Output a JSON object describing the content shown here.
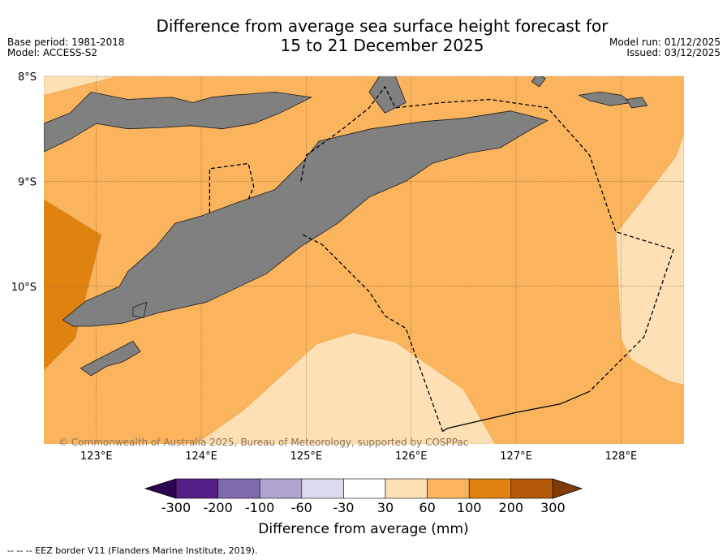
{
  "chart_data": {
    "type": "heatmap",
    "title_line1": "Difference from average sea surface height forecast for",
    "title_line2": "15 to 21 December 2025",
    "base_period": "Base period: 1981-2018",
    "model": "Model: ACCESS-S2",
    "model_run": "Model run: 01/12/2025",
    "issued": "Issued: 03/12/2025",
    "lon_range": [
      122.5,
      128.6
    ],
    "lat_range": [
      -11.5,
      -8.0
    ],
    "lon_ticks": [
      {
        "value": 123,
        "label": "123°E"
      },
      {
        "value": 124,
        "label": "124°E"
      },
      {
        "value": 125,
        "label": "125°E"
      },
      {
        "value": 126,
        "label": "126°E"
      },
      {
        "value": 127,
        "label": "127°E"
      },
      {
        "value": 128,
        "label": "128°E"
      }
    ],
    "lat_ticks": [
      {
        "value": -8,
        "label": "8°S"
      },
      {
        "value": -9,
        "label": "9°S"
      },
      {
        "value": -10,
        "label": "10°S"
      }
    ],
    "copyright": "© Commonwealth of Australia 2025, Bureau of Meteorology, supported by COSPPac",
    "background_bin": "60 to 100",
    "regions": [
      {
        "name": "100 to 200 mm",
        "color": "#e0820f",
        "lonlat": [
          [
            122.5,
            -9.17
          ],
          [
            123.05,
            -9.51
          ],
          [
            122.8,
            -10.5
          ],
          [
            122.5,
            -10.8
          ]
        ]
      },
      {
        "name": "30 to 60 mm (south)",
        "color": "#fde0b4",
        "lonlat": [
          [
            123.95,
            -11.5
          ],
          [
            124.4,
            -11.18
          ],
          [
            125.1,
            -10.55
          ],
          [
            125.45,
            -10.44
          ],
          [
            125.85,
            -10.53
          ],
          [
            126.5,
            -10.98
          ],
          [
            126.8,
            -11.5
          ]
        ]
      },
      {
        "name": "30 to 60 mm (east)",
        "color": "#fde0b4",
        "lonlat": [
          [
            128.6,
            -8.55
          ],
          [
            128.52,
            -8.77
          ],
          [
            127.95,
            -9.5
          ],
          [
            128.0,
            -10.5
          ],
          [
            128.1,
            -10.7
          ],
          [
            128.45,
            -10.9
          ],
          [
            128.6,
            -10.94
          ]
        ]
      },
      {
        "name": "30 to 60 mm (north-west corner)",
        "color": "#fde0b4",
        "lonlat": [
          [
            122.5,
            -8.0
          ],
          [
            123.2,
            -8.0
          ],
          [
            122.5,
            -8.18
          ]
        ]
      }
    ],
    "land": [
      {
        "name": "Timor",
        "lonlat": [
          [
            122.68,
            -10.32
          ],
          [
            122.9,
            -10.14
          ],
          [
            123.22,
            -10.0
          ],
          [
            123.3,
            -9.86
          ],
          [
            123.57,
            -9.62
          ],
          [
            123.75,
            -9.4
          ],
          [
            124.0,
            -9.33
          ],
          [
            124.35,
            -9.2
          ],
          [
            124.7,
            -9.08
          ],
          [
            124.98,
            -8.8
          ],
          [
            125.12,
            -8.62
          ],
          [
            125.62,
            -8.5
          ],
          [
            126.12,
            -8.43
          ],
          [
            126.5,
            -8.4
          ],
          [
            126.95,
            -8.33
          ],
          [
            127.3,
            -8.42
          ],
          [
            127.1,
            -8.53
          ],
          [
            126.85,
            -8.68
          ],
          [
            126.55,
            -8.73
          ],
          [
            126.2,
            -8.83
          ],
          [
            125.95,
            -9.0
          ],
          [
            125.6,
            -9.15
          ],
          [
            125.3,
            -9.4
          ],
          [
            124.95,
            -9.62
          ],
          [
            124.62,
            -9.88
          ],
          [
            124.05,
            -10.15
          ],
          [
            123.6,
            -10.25
          ],
          [
            123.25,
            -10.35
          ],
          [
            122.95,
            -10.38
          ],
          [
            122.78,
            -10.38
          ]
        ]
      },
      {
        "name": "Alor and Solor islands",
        "lonlat": [
          [
            122.5,
            -8.45
          ],
          [
            122.75,
            -8.35
          ],
          [
            122.95,
            -8.15
          ],
          [
            123.3,
            -8.22
          ],
          [
            123.72,
            -8.2
          ],
          [
            123.92,
            -8.25
          ],
          [
            124.1,
            -8.2
          ],
          [
            124.28,
            -8.18
          ],
          [
            124.45,
            -8.17
          ],
          [
            124.7,
            -8.15
          ],
          [
            125.05,
            -8.2
          ],
          [
            124.75,
            -8.35
          ],
          [
            124.5,
            -8.45
          ],
          [
            124.2,
            -8.5
          ],
          [
            123.9,
            -8.47
          ],
          [
            123.6,
            -8.49
          ],
          [
            123.3,
            -8.5
          ],
          [
            123.0,
            -8.45
          ],
          [
            122.75,
            -8.6
          ],
          [
            122.5,
            -8.72
          ]
        ]
      },
      {
        "name": "Wetar",
        "lonlat": [
          [
            125.75,
            -7.92
          ],
          [
            125.85,
            -8.0
          ],
          [
            125.95,
            -8.25
          ],
          [
            125.75,
            -8.35
          ],
          [
            125.6,
            -8.15
          ]
        ]
      },
      {
        "name": "Kisar",
        "lonlat": [
          [
            127.2,
            -7.98
          ],
          [
            127.28,
            -8.02
          ],
          [
            127.22,
            -8.1
          ],
          [
            127.15,
            -8.05
          ]
        ]
      },
      {
        "name": "Leti",
        "lonlat": [
          [
            127.6,
            -8.18
          ],
          [
            127.8,
            -8.15
          ],
          [
            128.0,
            -8.18
          ],
          [
            128.1,
            -8.25
          ],
          [
            127.9,
            -8.28
          ],
          [
            127.7,
            -8.23
          ]
        ]
      },
      {
        "name": "Moa",
        "lonlat": [
          [
            128.05,
            -8.22
          ],
          [
            128.2,
            -8.2
          ],
          [
            128.25,
            -8.28
          ],
          [
            128.1,
            -8.3
          ]
        ]
      },
      {
        "name": "Roti",
        "lonlat": [
          [
            122.85,
            -10.78
          ],
          [
            123.0,
            -10.7
          ],
          [
            123.2,
            -10.6
          ],
          [
            123.35,
            -10.52
          ],
          [
            123.42,
            -10.62
          ],
          [
            123.25,
            -10.72
          ],
          [
            123.1,
            -10.76
          ],
          [
            122.95,
            -10.85
          ]
        ]
      },
      {
        "name": "Semau",
        "lonlat": [
          [
            123.35,
            -10.2
          ],
          [
            123.48,
            -10.15
          ],
          [
            123.45,
            -10.3
          ],
          [
            123.35,
            -10.28
          ]
        ]
      }
    ],
    "eez_lines": [
      [
        [
          124.08,
          -9.3
        ],
        [
          124.08,
          -8.88
        ],
        [
          124.45,
          -8.83
        ],
        [
          124.5,
          -9.05
        ],
        [
          124.45,
          -9.17
        ]
      ],
      [
        [
          124.95,
          -9.0
        ],
        [
          125.0,
          -8.75
        ],
        [
          125.35,
          -8.5
        ],
        [
          125.6,
          -8.3
        ],
        [
          125.75,
          -8.1
        ],
        [
          125.85,
          -8.3
        ],
        [
          126.3,
          -8.25
        ],
        [
          126.75,
          -8.22
        ],
        [
          127.3,
          -8.3
        ],
        [
          127.7,
          -8.75
        ],
        [
          127.95,
          -9.48
        ],
        [
          128.5,
          -9.65
        ],
        [
          128.22,
          -10.48
        ],
        [
          127.7,
          -11.0
        ]
      ],
      [
        [
          127.7,
          -11.0
        ],
        [
          127.42,
          -11.12
        ],
        [
          127.0,
          -11.2
        ],
        [
          126.35,
          -11.35
        ],
        [
          126.3,
          -11.38
        ]
      ],
      [
        [
          126.3,
          -11.38
        ],
        [
          125.95,
          -10.4
        ],
        [
          125.75,
          -10.28
        ],
        [
          125.6,
          -10.05
        ],
        [
          125.15,
          -9.6
        ],
        [
          124.95,
          -9.5
        ]
      ]
    ],
    "colorbar": {
      "label": "Difference from average (mm)",
      "ticks": [
        "-300",
        "-200",
        "-100",
        "-60",
        "-30",
        "30",
        "60",
        "100",
        "200",
        "300"
      ],
      "colors": [
        "#542186",
        "#7e6aad",
        "#afa4cf",
        "#d9daeb",
        "#ffffff",
        "#fde0b4",
        "#fab45e",
        "#e0820f",
        "#b35807"
      ],
      "under_color": "#2d0451",
      "over_color": "#7f3b08"
    },
    "footnote": "--  --  -- EEZ border V11 (Flanders Marine Institute, 2019)."
  }
}
